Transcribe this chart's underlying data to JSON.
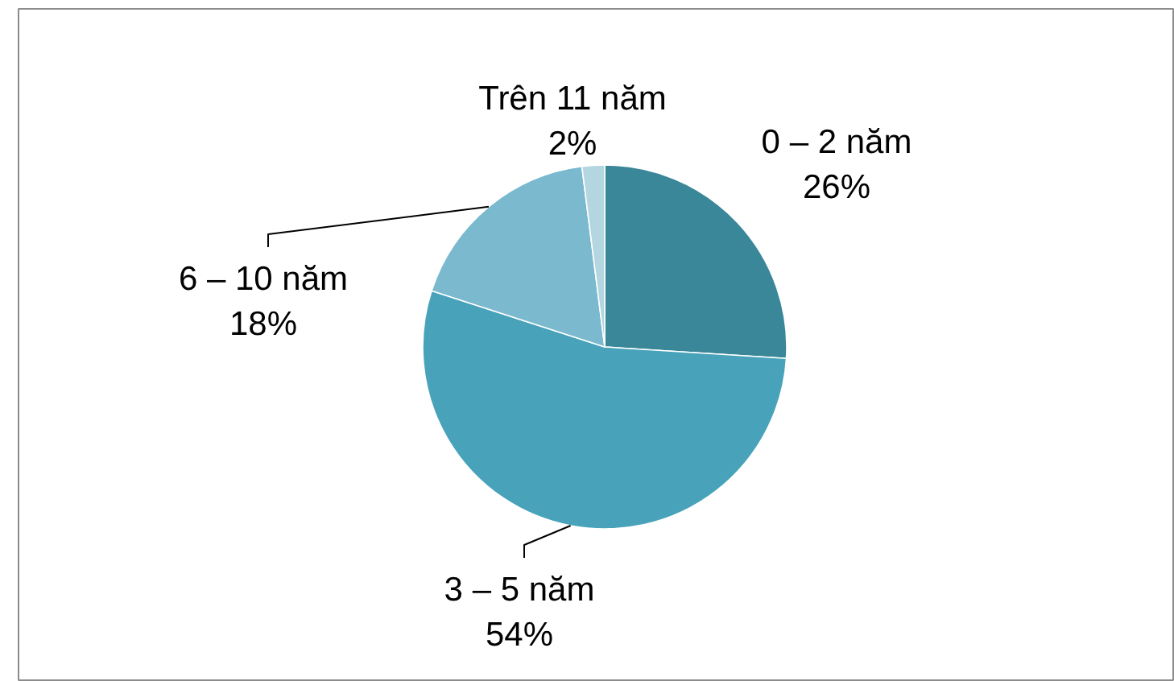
{
  "chart_data": {
    "type": "pie",
    "categories": [
      "0 – 2 năm",
      "3 – 5 năm",
      "6 – 10 năm",
      "Trên 11 năm"
    ],
    "values": [
      26,
      54,
      18,
      2
    ],
    "colors": [
      "#3a8799",
      "#48a3ba",
      "#7bb9cf",
      "#b3d6e1"
    ],
    "value_labels": [
      "26%",
      "54%",
      "18%",
      "2%"
    ]
  }
}
